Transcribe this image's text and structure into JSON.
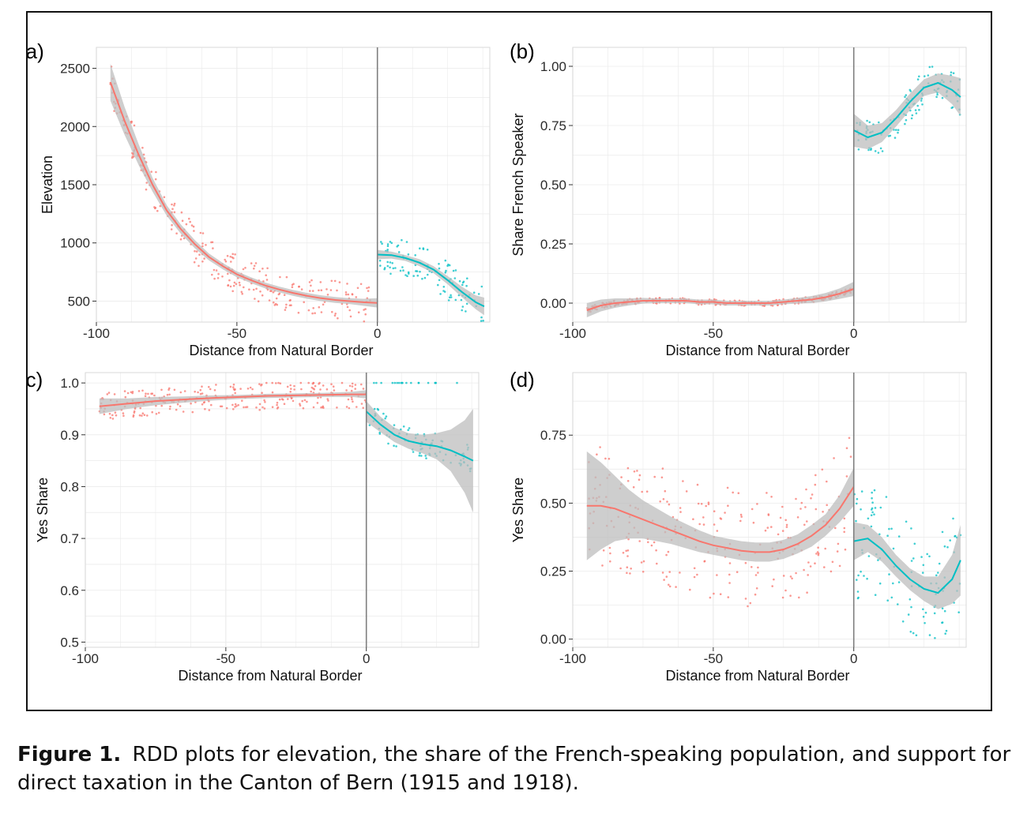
{
  "caption": {
    "label": "Figure 1.",
    "text": "RDD plots for elevation, the share of the French-speaking population, and support for direct taxation in the Canton of Bern (1915 and 1918)."
  },
  "colors": {
    "left": "#f8766d",
    "right": "#00bfc4",
    "band": "#bdbdbd",
    "panel_bg": "#ffffff",
    "grid": "#ebebeb",
    "cutoff": "#7f7f7f"
  },
  "chart_data": [
    {
      "panel": "(a)",
      "type": "scatter",
      "xlabel": "Distance from Natural Border",
      "ylabel": "Elevation",
      "xlim": [
        -100,
        40
      ],
      "ylim": [
        320,
        2680
      ],
      "xticks": [
        -100,
        -50,
        0
      ],
      "yticks": [
        500,
        1000,
        1500,
        2000,
        2500
      ],
      "cutoff": 0,
      "fit_x_min": -95,
      "fit_x_max": 38,
      "series": [
        {
          "side": "left",
          "points": [
            [
              -95,
              2380
            ],
            [
              -90,
              2050
            ],
            [
              -85,
              1760
            ],
            [
              -80,
              1500
            ],
            [
              -75,
              1280
            ],
            [
              -70,
              1120
            ],
            [
              -65,
              990
            ],
            [
              -60,
              880
            ],
            [
              -55,
              800
            ],
            [
              -50,
              730
            ],
            [
              -45,
              680
            ],
            [
              -40,
              635
            ],
            [
              -35,
              600
            ],
            [
              -30,
              570
            ],
            [
              -25,
              545
            ],
            [
              -20,
              525
            ],
            [
              -15,
              510
            ],
            [
              -10,
              500
            ],
            [
              -5,
              490
            ],
            [
              0,
              485
            ]
          ],
          "band": [
            160,
            120,
            90,
            60,
            45,
            40,
            35,
            30,
            28,
            25,
            25,
            25,
            25,
            25,
            25,
            25,
            25,
            25,
            30,
            40
          ]
        },
        {
          "side": "right",
          "points": [
            [
              0,
              900
            ],
            [
              5,
              895
            ],
            [
              10,
              870
            ],
            [
              15,
              830
            ],
            [
              20,
              770
            ],
            [
              25,
              680
            ],
            [
              30,
              580
            ],
            [
              35,
              490
            ],
            [
              38,
              455
            ]
          ],
          "band": [
            40,
            30,
            25,
            30,
            30,
            35,
            45,
            60,
            75
          ]
        }
      ]
    },
    {
      "panel": "(b)",
      "type": "scatter",
      "xlabel": "Distance from Natural Border",
      "ylabel": "Share French Speaker",
      "xlim": [
        -100,
        40
      ],
      "ylim": [
        -0.08,
        1.08
      ],
      "xticks": [
        -100,
        -50,
        0
      ],
      "yticks": [
        0.0,
        0.25,
        0.5,
        0.75,
        1.0
      ],
      "cutoff": 0,
      "fit_x_min": -95,
      "fit_x_max": 38,
      "series": [
        {
          "side": "left",
          "points": [
            [
              -95,
              -0.03
            ],
            [
              -90,
              -0.01
            ],
            [
              -85,
              0.0
            ],
            [
              -80,
              0.005
            ],
            [
              -75,
              0.01
            ],
            [
              -70,
              0.01
            ],
            [
              -65,
              0.01
            ],
            [
              -60,
              0.01
            ],
            [
              -55,
              0.005
            ],
            [
              -50,
              0.005
            ],
            [
              -45,
              0.0
            ],
            [
              -40,
              0.0
            ],
            [
              -35,
              0.0
            ],
            [
              -30,
              0.0
            ],
            [
              -25,
              0.005
            ],
            [
              -20,
              0.01
            ],
            [
              -15,
              0.015
            ],
            [
              -10,
              0.025
            ],
            [
              -5,
              0.04
            ],
            [
              0,
              0.06
            ]
          ],
          "band": [
            0.03,
            0.025,
            0.02,
            0.015,
            0.012,
            0.01,
            0.01,
            0.01,
            0.01,
            0.01,
            0.01,
            0.01,
            0.01,
            0.01,
            0.01,
            0.012,
            0.015,
            0.018,
            0.022,
            0.03
          ]
        },
        {
          "side": "right",
          "points": [
            [
              0,
              0.73
            ],
            [
              5,
              0.7
            ],
            [
              10,
              0.72
            ],
            [
              15,
              0.78
            ],
            [
              20,
              0.85
            ],
            [
              25,
              0.91
            ],
            [
              30,
              0.93
            ],
            [
              35,
              0.9
            ],
            [
              38,
              0.87
            ]
          ],
          "band": [
            0.07,
            0.05,
            0.04,
            0.035,
            0.035,
            0.035,
            0.04,
            0.06,
            0.08
          ]
        }
      ]
    },
    {
      "panel": "(c)",
      "type": "scatter",
      "xlabel": "Distance from Natural Border",
      "ylabel": "Yes Share",
      "xlim": [
        -100,
        40
      ],
      "ylim": [
        0.49,
        1.02
      ],
      "xticks": [
        -100,
        -50,
        0
      ],
      "yticks": [
        0.5,
        0.6,
        0.7,
        0.8,
        0.9,
        1.0
      ],
      "cutoff": 0,
      "fit_x_min": -95,
      "fit_x_max": 38,
      "series": [
        {
          "side": "left",
          "points": [
            [
              -95,
              0.955
            ],
            [
              -85,
              0.96
            ],
            [
              -75,
              0.965
            ],
            [
              -65,
              0.968
            ],
            [
              -55,
              0.971
            ],
            [
              -45,
              0.973
            ],
            [
              -35,
              0.975
            ],
            [
              -25,
              0.976
            ],
            [
              -15,
              0.977
            ],
            [
              -5,
              0.978
            ],
            [
              0,
              0.978
            ]
          ],
          "band": [
            0.015,
            0.01,
            0.008,
            0.006,
            0.005,
            0.004,
            0.004,
            0.004,
            0.004,
            0.005,
            0.008
          ]
        },
        {
          "side": "right",
          "points": [
            [
              0,
              0.945
            ],
            [
              5,
              0.92
            ],
            [
              10,
              0.9
            ],
            [
              15,
              0.888
            ],
            [
              20,
              0.882
            ],
            [
              25,
              0.878
            ],
            [
              30,
              0.87
            ],
            [
              35,
              0.858
            ],
            [
              38,
              0.85
            ]
          ],
          "band": [
            0.02,
            0.015,
            0.014,
            0.015,
            0.018,
            0.025,
            0.04,
            0.07,
            0.1
          ]
        }
      ]
    },
    {
      "panel": "(d)",
      "type": "scatter",
      "xlabel": "Distance from Natural Border",
      "ylabel": "Yes Share",
      "xlim": [
        -100,
        40
      ],
      "ylim": [
        -0.03,
        0.98
      ],
      "xticks": [
        -100,
        -50,
        0
      ],
      "yticks": [
        0.0,
        0.25,
        0.5,
        0.75
      ],
      "cutoff": 0,
      "fit_x_min": -95,
      "fit_x_max": 38,
      "series": [
        {
          "side": "left",
          "points": [
            [
              -95,
              0.49
            ],
            [
              -90,
              0.49
            ],
            [
              -85,
              0.48
            ],
            [
              -80,
              0.46
            ],
            [
              -75,
              0.44
            ],
            [
              -70,
              0.42
            ],
            [
              -65,
              0.4
            ],
            [
              -60,
              0.38
            ],
            [
              -55,
              0.36
            ],
            [
              -50,
              0.345
            ],
            [
              -45,
              0.335
            ],
            [
              -40,
              0.325
            ],
            [
              -35,
              0.32
            ],
            [
              -30,
              0.32
            ],
            [
              -25,
              0.33
            ],
            [
              -20,
              0.35
            ],
            [
              -15,
              0.38
            ],
            [
              -10,
              0.42
            ],
            [
              -5,
              0.48
            ],
            [
              0,
              0.56
            ]
          ],
          "band": [
            0.2,
            0.16,
            0.12,
            0.09,
            0.07,
            0.06,
            0.05,
            0.045,
            0.04,
            0.035,
            0.035,
            0.035,
            0.035,
            0.035,
            0.035,
            0.035,
            0.04,
            0.04,
            0.05,
            0.07
          ]
        },
        {
          "side": "right",
          "points": [
            [
              0,
              0.36
            ],
            [
              5,
              0.37
            ],
            [
              10,
              0.33
            ],
            [
              15,
              0.27
            ],
            [
              20,
              0.22
            ],
            [
              25,
              0.185
            ],
            [
              30,
              0.17
            ],
            [
              35,
              0.22
            ],
            [
              38,
              0.29
            ]
          ],
          "band": [
            0.07,
            0.05,
            0.045,
            0.04,
            0.04,
            0.045,
            0.06,
            0.09,
            0.13
          ]
        }
      ]
    }
  ]
}
